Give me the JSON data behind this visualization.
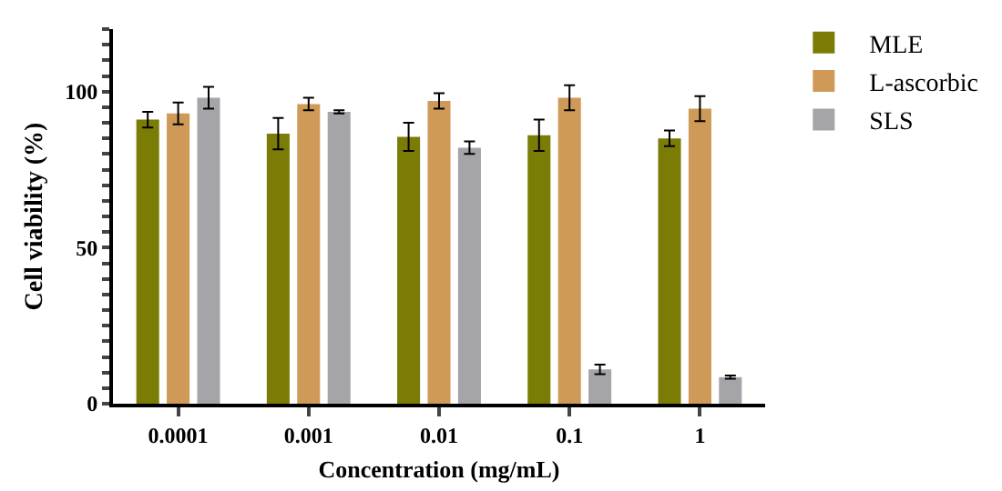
{
  "chart_data": {
    "type": "bar",
    "xlabel": "Concentration (mg/mL)",
    "ylabel": "Cell viability (%)",
    "categories": [
      "0.0001",
      "0.001",
      "0.01",
      "0.1",
      "1"
    ],
    "series": [
      {
        "name": "MLE",
        "color": "#7a7c06",
        "values": [
          91,
          86.5,
          85.5,
          86,
          85
        ],
        "errors": [
          2.5,
          5,
          4.5,
          5,
          2.5
        ]
      },
      {
        "name": "L-ascorbic",
        "color": "#cf9a57",
        "values": [
          93,
          96,
          97,
          98,
          94.5
        ],
        "errors": [
          3.5,
          2,
          2.5,
          4,
          4
        ]
      },
      {
        "name": "SLS",
        "color": "#a5a5a9",
        "values": [
          98,
          93.5,
          82,
          11,
          8.5
        ],
        "errors": [
          3.5,
          0.5,
          2,
          1.5,
          0.5
        ]
      }
    ],
    "ylim": [
      0,
      120
    ],
    "yticks": [
      0,
      {
        "value": 5,
        "label": null
      },
      {
        "value": 10,
        "label": null
      },
      {
        "value": 15,
        "label": null
      },
      {
        "value": 20,
        "label": null
      },
      {
        "value": 25,
        "label": null
      },
      {
        "value": 30,
        "label": null
      },
      {
        "value": 35,
        "label": null
      },
      {
        "value": 40,
        "label": null
      },
      {
        "value": 45,
        "label": null
      },
      50,
      {
        "value": 55,
        "label": null
      },
      {
        "value": 60,
        "label": null
      },
      {
        "value": 65,
        "label": null
      },
      {
        "value": 70,
        "label": null
      },
      {
        "value": 75,
        "label": null
      },
      {
        "value": 80,
        "label": null
      },
      {
        "value": 85,
        "label": null
      },
      {
        "value": 90,
        "label": null
      },
      {
        "value": 95,
        "label": null
      },
      100,
      {
        "value": 105,
        "label": null
      },
      {
        "value": 110,
        "label": null
      },
      {
        "value": 115,
        "label": null
      },
      {
        "value": 120,
        "label": null
      }
    ],
    "grid": false,
    "legend": "top right"
  }
}
